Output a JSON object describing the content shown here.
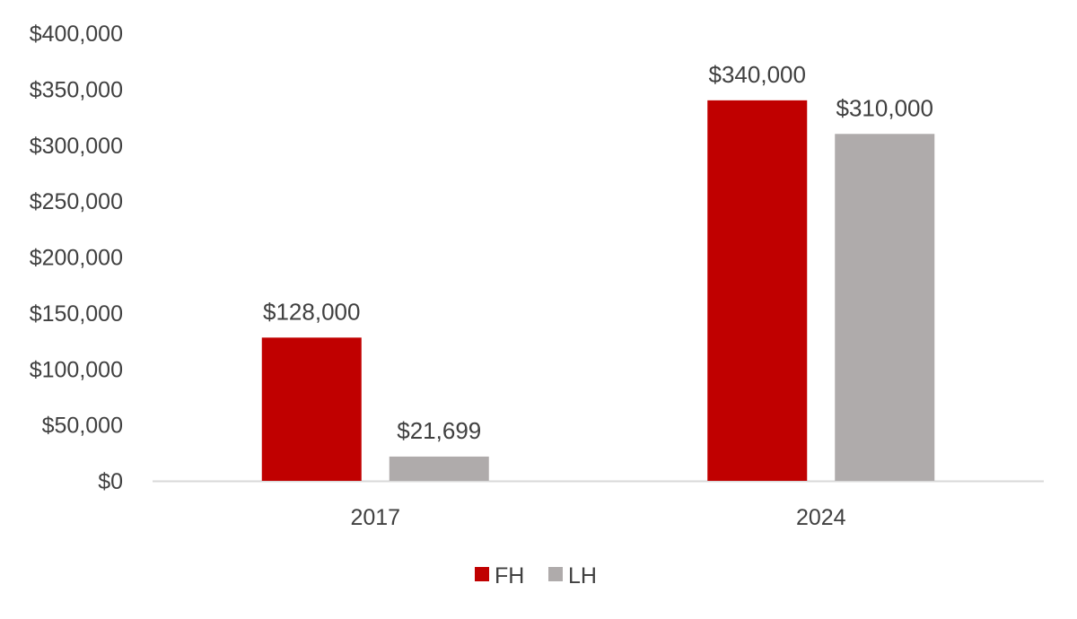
{
  "chart_data": {
    "type": "bar",
    "title": "",
    "xlabel": "",
    "ylabel": "",
    "categories": [
      "2017",
      "2024"
    ],
    "series": [
      {
        "name": "FH",
        "color": "#c00000",
        "values": [
          128000,
          340000
        ],
        "labels": [
          "$128,000",
          "$340,000"
        ]
      },
      {
        "name": "LH",
        "color": "#afabab",
        "values": [
          21699,
          310000
        ],
        "labels": [
          "$21,699",
          "$310,000"
        ]
      }
    ],
    "ylim": [
      0,
      400000
    ],
    "yticks": [
      0,
      50000,
      100000,
      150000,
      200000,
      250000,
      300000,
      350000,
      400000
    ],
    "ytick_labels": [
      "$0",
      "$50,000",
      "$100,000",
      "$150,000",
      "$200,000",
      "$250,000",
      "$300,000",
      "$350,000",
      "$400,000"
    ],
    "grid": false,
    "legend_position": "bottom"
  }
}
